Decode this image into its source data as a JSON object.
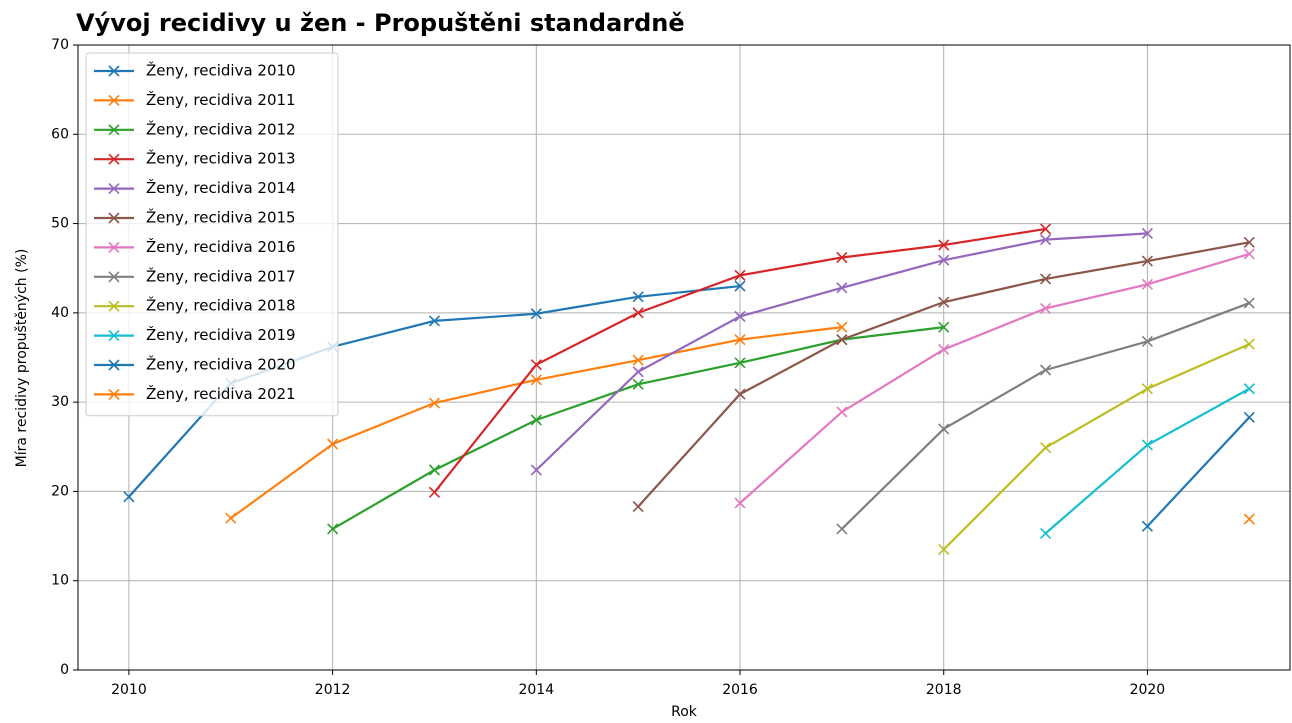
{
  "chart_data": {
    "type": "line",
    "title": "Vývoj recidivy u žen - Propuštěni standardně",
    "x_label": "Rok",
    "y_label": "Míra recidivy propuštěných (%)",
    "x": [
      2010,
      2011,
      2012,
      2013,
      2014,
      2015,
      2016,
      2017,
      2018,
      2019,
      2020,
      2021
    ],
    "xlim": [
      2009.5,
      2021.4
    ],
    "xticks": [
      2010,
      2012,
      2014,
      2016,
      2018,
      2020
    ],
    "ylim": [
      0,
      70
    ],
    "yticks": [
      0,
      10,
      20,
      30,
      40,
      50,
      60,
      70
    ],
    "grid": true,
    "legend": "upper left",
    "series": [
      {
        "name": "Ženy, recidiva 2010",
        "color": "#1f77b4",
        "values": [
          19.4,
          32.1,
          36.2,
          39.1,
          39.9,
          41.8,
          43.0,
          null,
          null,
          null,
          null,
          null
        ]
      },
      {
        "name": "Ženy, recidiva 2011",
        "color": "#ff7f0e",
        "values": [
          null,
          17.0,
          25.3,
          29.9,
          32.5,
          34.7,
          37.0,
          38.4,
          null,
          null,
          null,
          null
        ]
      },
      {
        "name": "Ženy, recidiva 2012",
        "color": "#2ca02c",
        "values": [
          null,
          null,
          15.8,
          22.4,
          28.0,
          32.0,
          34.4,
          37.0,
          38.4,
          null,
          null,
          null
        ]
      },
      {
        "name": "Ženy, recidiva 2013",
        "color": "#d62728",
        "values": [
          null,
          null,
          null,
          19.9,
          34.2,
          40.0,
          44.2,
          46.2,
          47.6,
          49.4,
          null,
          null
        ]
      },
      {
        "name": "Ženy, recidiva 2014",
        "color": "#9467bd",
        "values": [
          null,
          null,
          null,
          null,
          22.4,
          33.4,
          39.6,
          42.8,
          45.9,
          48.2,
          48.9,
          null
        ]
      },
      {
        "name": "Ženy, recidiva 2015",
        "color": "#8c564b",
        "values": [
          null,
          null,
          null,
          null,
          null,
          18.3,
          30.9,
          37.0,
          41.2,
          43.8,
          45.8,
          47.9
        ]
      },
      {
        "name": "Ženy, recidiva 2016",
        "color": "#e377c2",
        "values": [
          null,
          null,
          null,
          null,
          null,
          null,
          18.7,
          28.9,
          35.9,
          40.5,
          43.2,
          46.6
        ]
      },
      {
        "name": "Ženy, recidiva 2017",
        "color": "#7f7f7f",
        "values": [
          null,
          null,
          null,
          null,
          null,
          null,
          null,
          15.8,
          27.0,
          33.6,
          36.8,
          41.1
        ]
      },
      {
        "name": "Ženy, recidiva 2018",
        "color": "#bcbd22",
        "values": [
          null,
          null,
          null,
          null,
          null,
          null,
          null,
          null,
          13.5,
          24.9,
          31.5,
          36.5
        ]
      },
      {
        "name": "Ženy, recidiva 2019",
        "color": "#17becf",
        "values": [
          null,
          null,
          null,
          null,
          null,
          null,
          null,
          null,
          null,
          15.3,
          25.2,
          31.5
        ]
      },
      {
        "name": "Ženy, recidiva 2020",
        "color": "#1f77b4",
        "values": [
          null,
          null,
          null,
          null,
          null,
          null,
          null,
          null,
          null,
          null,
          16.1,
          28.3
        ]
      },
      {
        "name": "Ženy, recidiva 2021",
        "color": "#ff7f0e",
        "values": [
          null,
          null,
          null,
          null,
          null,
          null,
          null,
          null,
          null,
          null,
          null,
          16.9
        ]
      }
    ]
  }
}
